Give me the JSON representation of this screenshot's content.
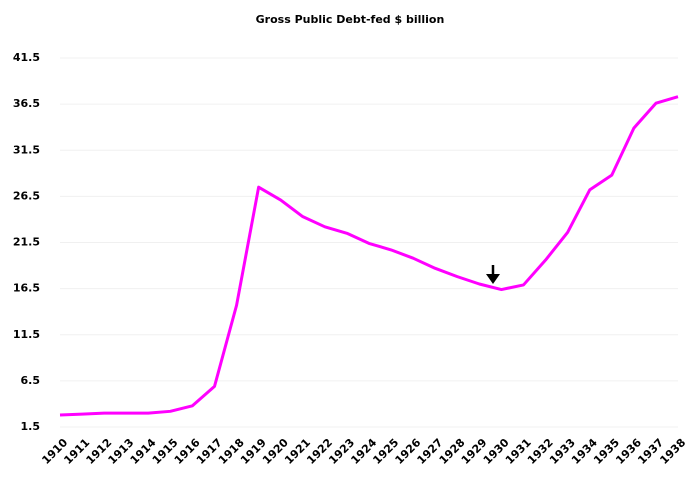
{
  "chart_data": {
    "type": "line",
    "title": "Gross Public Debt-fed $ billion",
    "categories": [
      "1910",
      "1911",
      "1912",
      "1913",
      "1914",
      "1915",
      "1916",
      "1917",
      "1918",
      "1919",
      "1920",
      "1921",
      "1922",
      "1923",
      "1924",
      "1925",
      "1926",
      "1927",
      "1928",
      "1929",
      "1930",
      "1931",
      "1932",
      "1933",
      "1934",
      "1935",
      "1936",
      "1937",
      "1938"
    ],
    "values": [
      2.8,
      2.9,
      3.0,
      3.0,
      3.0,
      3.2,
      3.8,
      5.9,
      14.7,
      27.5,
      26.1,
      24.3,
      23.2,
      22.5,
      21.4,
      20.7,
      19.8,
      18.7,
      17.8,
      17.0,
      16.4,
      16.9,
      19.6,
      22.6,
      27.2,
      28.8,
      33.9,
      36.6,
      37.3
    ],
    "color": "#ff00ff",
    "ylim": [
      1.5,
      41.5
    ],
    "yticks": [
      1.5,
      6.5,
      11.5,
      16.5,
      21.5,
      26.5,
      31.5,
      36.5,
      41.5
    ],
    "grid": true
  }
}
